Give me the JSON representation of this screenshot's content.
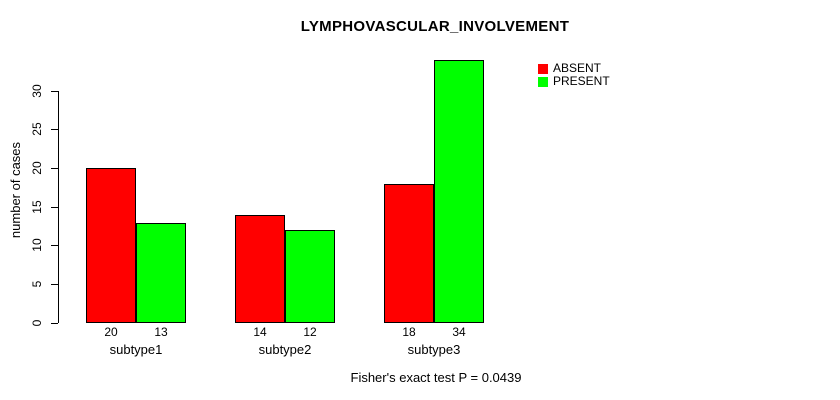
{
  "chart_data": {
    "type": "bar",
    "title": "LYMPHOVASCULAR_INVOLVEMENT",
    "ylabel": "number of cases",
    "xlabel": "",
    "categories": [
      "subtype1",
      "subtype2",
      "subtype3"
    ],
    "series": [
      {
        "name": "ABSENT",
        "color": "#FF0000",
        "values": [
          20,
          14,
          18
        ]
      },
      {
        "name": "PRESENT",
        "color": "#00FF00",
        "values": [
          13,
          12,
          34
        ]
      }
    ],
    "bar_value_labels": [
      [
        "20",
        "13"
      ],
      [
        "14",
        "12"
      ],
      [
        "18",
        "34"
      ]
    ],
    "ylim": [
      0,
      30
    ],
    "yticks": [
      0,
      5,
      10,
      15,
      20,
      25,
      30
    ],
    "grid": false,
    "legend_position": "top-right",
    "bar_border_color": "#000000",
    "annotation": "Fisher's exact test P = 0.0439"
  }
}
